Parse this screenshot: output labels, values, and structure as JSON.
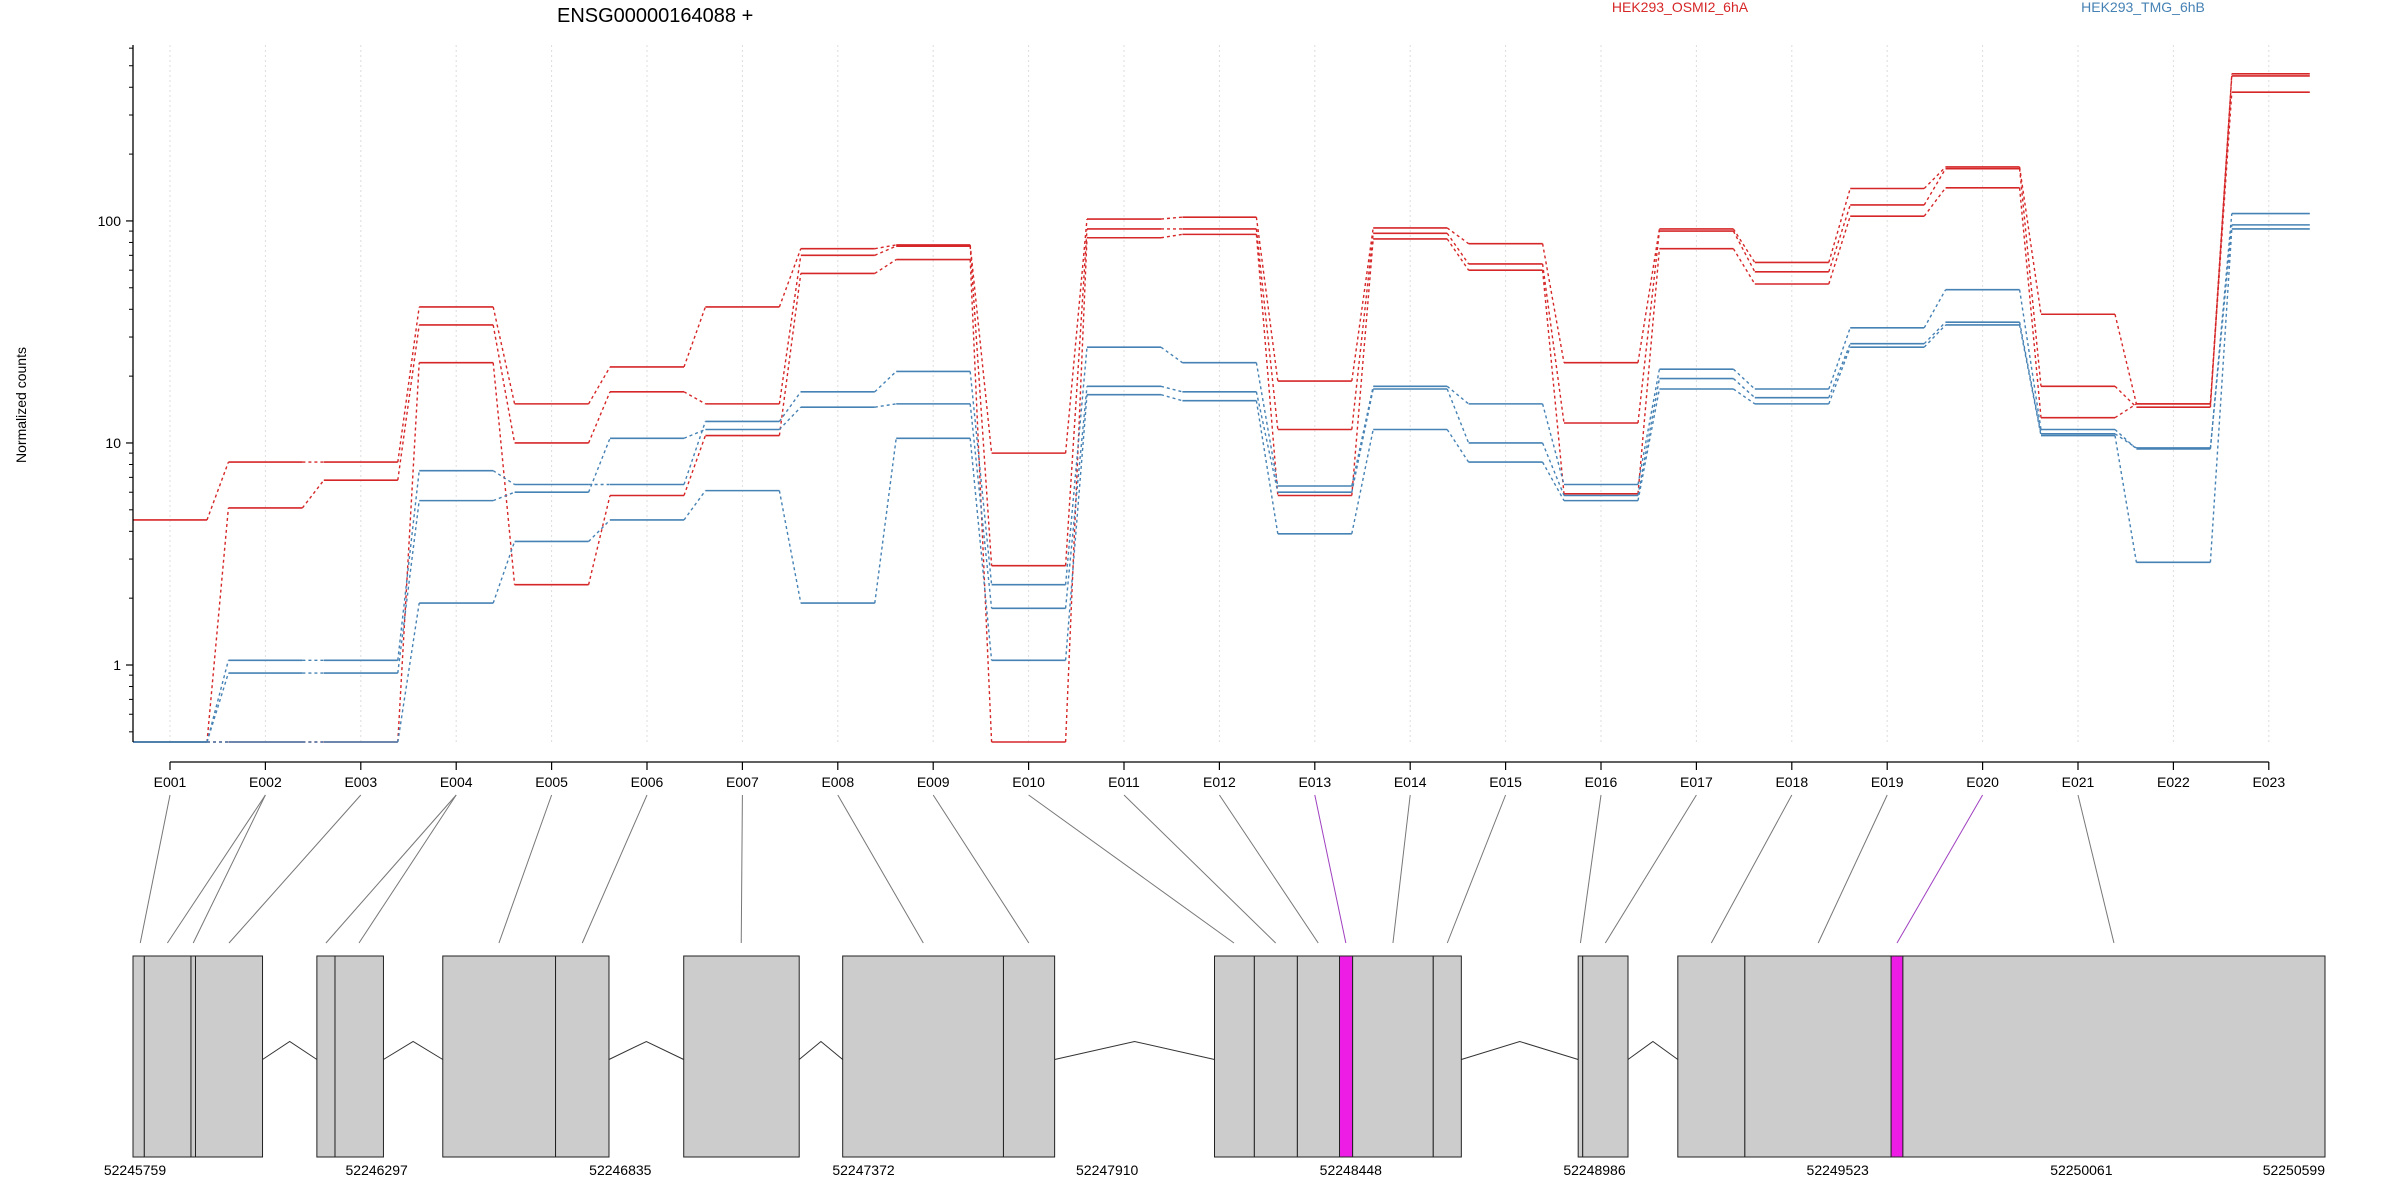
{
  "chart_data": {
    "type": "line",
    "title": "ENSG00000164088 +",
    "ylabel": "Normalized counts",
    "xlabel": "",
    "y_scale": "log",
    "ylim": [
      0.45,
      620
    ],
    "y_ticks": [
      1,
      10,
      100
    ],
    "y_tick_labels": [
      "1",
      "10",
      "100"
    ],
    "grid": "vertical dotted lines at each exon",
    "legend_placement": "top",
    "colors": {
      "group_a": "#d62728",
      "group_b": "#4682b4",
      "exon_fill": "#cccccc",
      "highlight": "#ee1de6",
      "connector": "#555555"
    },
    "categories": [
      "E001",
      "E002",
      "E003",
      "E004",
      "E005",
      "E006",
      "E007",
      "E008",
      "E009",
      "E010",
      "E011",
      "E012",
      "E013",
      "E014",
      "E015",
      "E016",
      "E017",
      "E018",
      "E019",
      "E020",
      "E021",
      "E022",
      "E023"
    ],
    "legend": [
      {
        "label": "HEK293_OSMI2_6hA",
        "color": "#d62728"
      },
      {
        "label": "HEK293_TMG_6hB",
        "color": "#4682b4"
      }
    ],
    "series": [
      {
        "group": "HEK293_OSMI2_6hA",
        "color": "#d62728",
        "values": [
          4.5,
          8.2,
          8.2,
          41,
          15,
          22,
          41,
          75,
          78,
          9,
          102,
          104,
          19,
          93,
          79,
          23,
          92,
          65,
          140,
          175,
          38,
          15,
          460
        ]
      },
      {
        "group": "HEK293_OSMI2_6hA",
        "color": "#d62728",
        "values": [
          0.45,
          5.1,
          6.8,
          34,
          10,
          17,
          15,
          70,
          77,
          2.8,
          92,
          92,
          11.5,
          88,
          64,
          12.3,
          90,
          59,
          118,
          172,
          18,
          14.5,
          450
        ]
      },
      {
        "group": "HEK293_OSMI2_6hA",
        "color": "#d62728",
        "values": [
          0.45,
          0.45,
          0.45,
          23,
          2.3,
          5.8,
          10.8,
          58,
          67,
          0.45,
          84,
          87,
          5.8,
          83,
          60,
          5.9,
          75,
          52,
          105,
          141,
          13,
          15,
          380
        ]
      },
      {
        "group": "HEK293_TMG_6hB",
        "color": "#4682b4",
        "values": [
          0.45,
          1.05,
          1.05,
          7.5,
          6.5,
          6.5,
          12.5,
          17,
          21,
          2.3,
          27,
          23,
          6.4,
          18,
          15,
          6.5,
          21.5,
          17.5,
          33,
          49,
          11.5,
          9.4,
          108
        ]
      },
      {
        "group": "HEK293_TMG_6hB",
        "color": "#4682b4",
        "values": [
          0.45,
          0.92,
          0.92,
          5.5,
          6.0,
          10.5,
          11.5,
          14.5,
          15,
          1.8,
          18,
          17,
          6.0,
          17.5,
          10,
          5.8,
          19.5,
          16,
          28,
          35,
          11,
          9.5,
          96
        ]
      },
      {
        "group": "HEK293_TMG_6hB",
        "color": "#4682b4",
        "values": [
          0.45,
          0.45,
          0.45,
          1.9,
          3.6,
          4.5,
          6.1,
          1.9,
          10.5,
          1.05,
          16.5,
          15.5,
          3.9,
          11.5,
          8.2,
          5.5,
          17.5,
          15,
          27,
          34,
          10.8,
          2.9,
          92
        ]
      }
    ],
    "gene_model": {
      "coord_ticks": [
        52245759,
        52246297,
        52246835,
        52247372,
        52247910,
        52248448,
        52248986,
        52249523,
        52250061,
        52250599
      ],
      "coord_tick_labels": [
        "52245759",
        "52246297",
        "52246835",
        "52247372",
        "52247910",
        "52248448",
        "52248986",
        "52249523",
        "52250061",
        "52250599"
      ],
      "blocks": [
        {
          "start": 52245759,
          "end": 52245784,
          "highlight": false
        },
        {
          "start": 52245784,
          "end": 52245887,
          "highlight": false
        },
        {
          "start": 52245887,
          "end": 52245897,
          "highlight": false
        },
        {
          "start": 52245897,
          "end": 52246045,
          "highlight": false
        },
        {
          "start": 52246165,
          "end": 52246205,
          "highlight": false
        },
        {
          "start": 52246205,
          "end": 52246312,
          "highlight": false
        },
        {
          "start": 52246443,
          "end": 52246692,
          "highlight": false
        },
        {
          "start": 52246692,
          "end": 52246810,
          "highlight": false
        },
        {
          "start": 52246975,
          "end": 52247230,
          "highlight": false
        },
        {
          "start": 52247326,
          "end": 52247681,
          "highlight": false
        },
        {
          "start": 52247681,
          "end": 52247794,
          "highlight": false
        },
        {
          "start": 52248147,
          "end": 52248235,
          "highlight": false
        },
        {
          "start": 52248235,
          "end": 52248330,
          "highlight": false
        },
        {
          "start": 52248330,
          "end": 52248423,
          "highlight": false
        },
        {
          "start": 52248423,
          "end": 52248452,
          "highlight": true
        },
        {
          "start": 52248452,
          "end": 52248630,
          "highlight": false
        },
        {
          "start": 52248630,
          "end": 52248692,
          "highlight": false
        },
        {
          "start": 52248950,
          "end": 52248960,
          "highlight": false
        },
        {
          "start": 52248960,
          "end": 52249060,
          "highlight": false
        },
        {
          "start": 52249170,
          "end": 52249318,
          "highlight": false
        },
        {
          "start": 52249318,
          "end": 52249641,
          "highlight": false
        },
        {
          "start": 52249641,
          "end": 52249667,
          "highlight": true
        },
        {
          "start": 52249667,
          "end": 52250599,
          "highlight": false
        }
      ],
      "introns": [
        {
          "start": 52246045,
          "end": 52246165
        },
        {
          "start": 52246312,
          "end": 52246443
        },
        {
          "start": 52246810,
          "end": 52246975
        },
        {
          "start": 52247230,
          "end": 52247326
        },
        {
          "start": 52247794,
          "end": 52248147
        },
        {
          "start": 52248692,
          "end": 52248950
        },
        {
          "start": 52249060,
          "end": 52249170
        }
      ],
      "connectors": [
        {
          "exon": "E001",
          "segments": [
            52245775
          ],
          "highlight": false
        },
        {
          "exon": "E002",
          "segments": [
            52245835,
            52245892
          ],
          "highlight": false
        },
        {
          "exon": "E003",
          "segments": [
            52245971
          ],
          "highlight": false
        },
        {
          "exon": "E004",
          "segments": [
            52246185,
            52246258
          ],
          "highlight": false
        },
        {
          "exon": "E005",
          "segments": [
            52246567
          ],
          "highlight": false
        },
        {
          "exon": "E006",
          "segments": [
            52246751
          ],
          "highlight": false
        },
        {
          "exon": "E007",
          "segments": [
            52247102
          ],
          "highlight": false
        },
        {
          "exon": "E008",
          "segments": [
            52247504
          ],
          "highlight": false
        },
        {
          "exon": "E009",
          "segments": [
            52247737
          ],
          "highlight": false
        },
        {
          "exon": "E010",
          "segments": [
            52248190
          ],
          "highlight": false
        },
        {
          "exon": "E011",
          "segments": [
            52248282
          ],
          "highlight": false
        },
        {
          "exon": "E012",
          "segments": [
            52248376
          ],
          "highlight": false
        },
        {
          "exon": "E013",
          "segments": [
            52248437
          ],
          "highlight": true
        },
        {
          "exon": "E014",
          "segments": [
            52248541
          ],
          "highlight": false
        },
        {
          "exon": "E015",
          "segments": [
            52248661
          ],
          "highlight": false
        },
        {
          "exon": "E016",
          "segments": [
            52248955
          ],
          "highlight": false
        },
        {
          "exon": "E017",
          "segments": [
            52249010
          ],
          "highlight": false
        },
        {
          "exon": "E018",
          "segments": [
            52249244
          ],
          "highlight": false
        },
        {
          "exon": "E019",
          "segments": [
            52249480
          ],
          "highlight": false
        },
        {
          "exon": "E020",
          "segments": [
            52249654
          ],
          "highlight": true
        },
        {
          "exon": "E021",
          "segments": [
            52250133
          ],
          "highlight": false
        },
        {
          "exon": "E022",
          "segments": [],
          "highlight": false
        },
        {
          "exon": "E023",
          "segments": [],
          "highlight": false
        }
      ]
    }
  }
}
